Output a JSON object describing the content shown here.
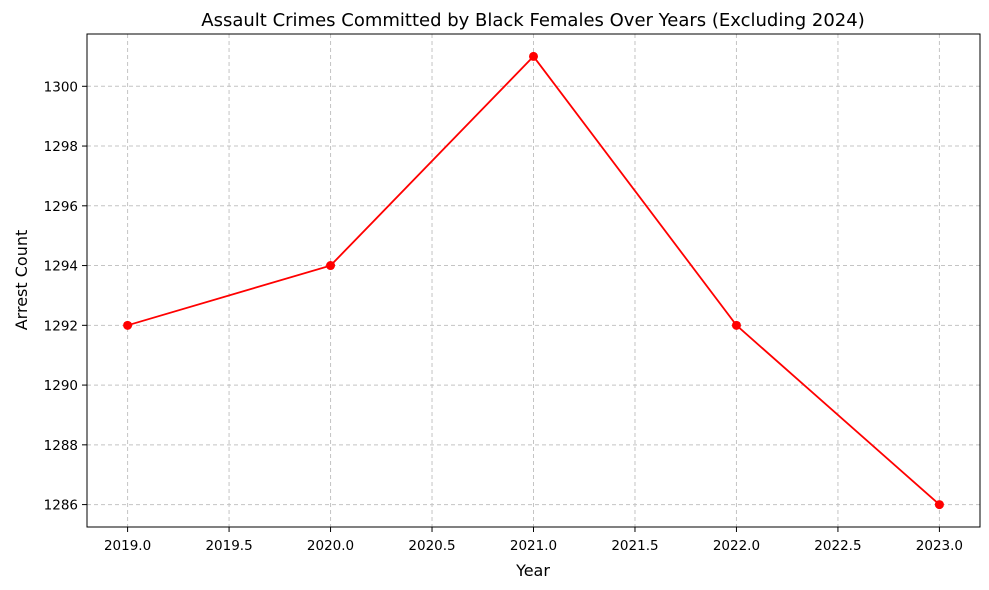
{
  "chart_data": {
    "type": "line",
    "title": "Assault Crimes Committed by Black Females Over Years (Excluding 2024)",
    "xlabel": "Year",
    "ylabel": "Arrest Count",
    "x": [
      2019,
      2020,
      2021,
      2022,
      2023
    ],
    "series": [
      {
        "values": [
          1292,
          1294,
          1301,
          1292,
          1286
        ],
        "color": "#ff0000",
        "marker": "circle"
      }
    ],
    "xticks": [
      "2019.0",
      "2019.5",
      "2020.0",
      "2020.5",
      "2021.0",
      "2021.5",
      "2022.0",
      "2022.5",
      "2023.0"
    ],
    "yticks": [
      "1286",
      "1288",
      "1290",
      "1292",
      "1294",
      "1296",
      "1298",
      "1300"
    ],
    "xlim": [
      2018.8,
      2023.2
    ],
    "ylim": [
      1285.25,
      1301.75
    ],
    "grid": true
  }
}
